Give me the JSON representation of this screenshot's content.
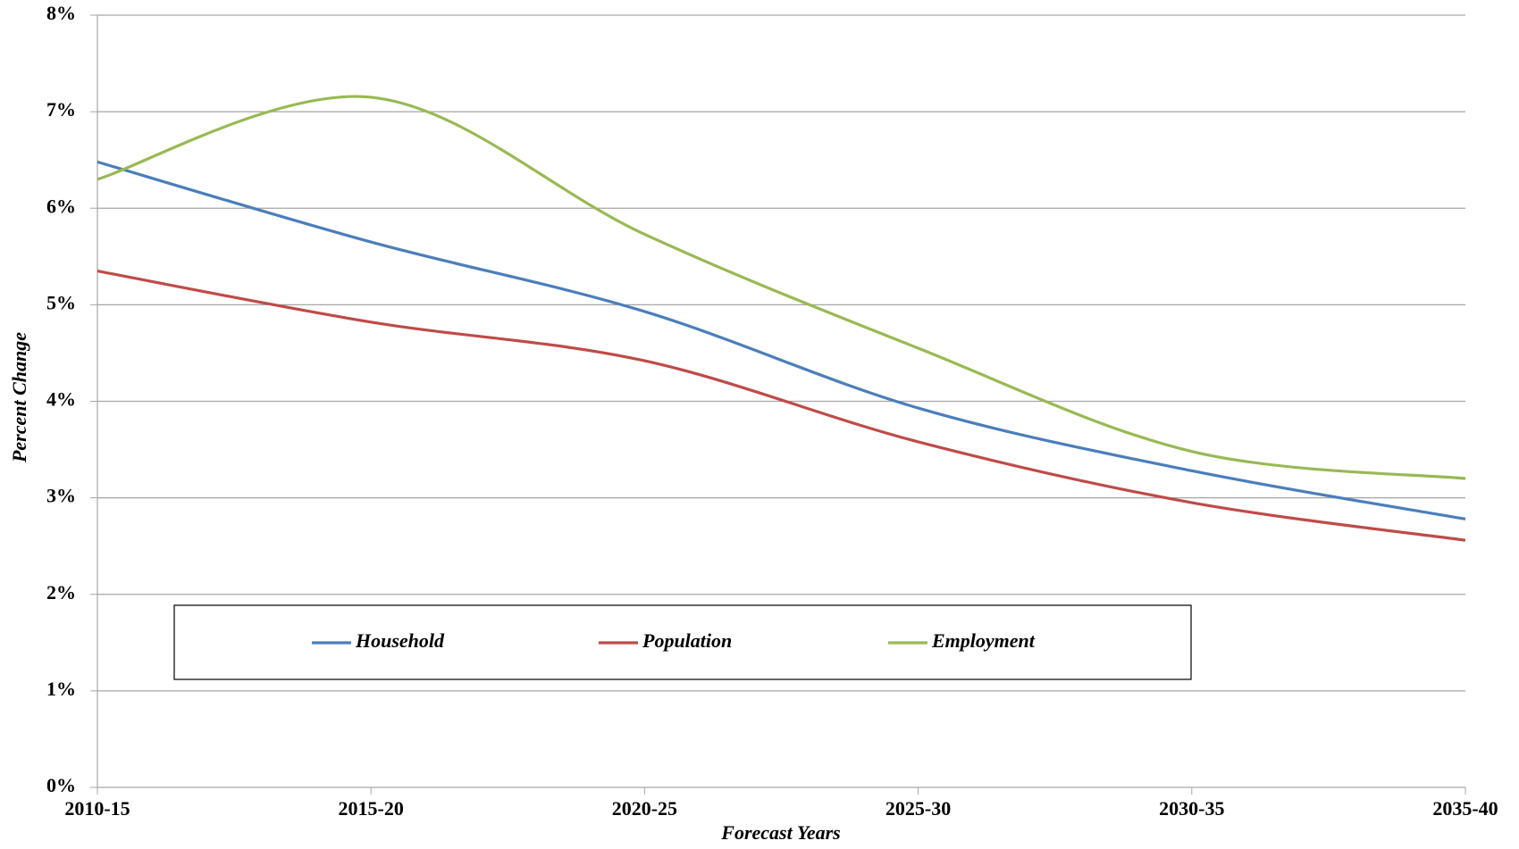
{
  "chart_data": {
    "type": "line",
    "x_label": "Forecast Years",
    "y_label": "Percent Change",
    "categories": [
      "2010-15",
      "2015-20",
      "2020-25",
      "2025-30",
      "2030-35",
      "2035-40"
    ],
    "series": [
      {
        "name": "Household",
        "color": "#4a7ebb",
        "values": [
          6.48,
          5.65,
          4.93,
          3.93,
          3.28,
          2.78
        ]
      },
      {
        "name": "Population",
        "color": "#be4b48",
        "values": [
          5.35,
          4.82,
          4.42,
          3.58,
          2.95,
          2.56
        ]
      },
      {
        "name": "Employment",
        "color": "#98b954",
        "values": [
          6.3,
          7.15,
          5.73,
          4.55,
          3.48,
          3.2
        ]
      }
    ],
    "ylim": [
      0,
      8
    ],
    "yticks": [
      {
        "value": 0,
        "label": "0%"
      },
      {
        "value": 1,
        "label": "1%"
      },
      {
        "value": 2,
        "label": "2%"
      },
      {
        "value": 3,
        "label": "3%"
      },
      {
        "value": 4,
        "label": "4%"
      },
      {
        "value": 5,
        "label": "5%"
      },
      {
        "value": 6,
        "label": "6%"
      },
      {
        "value": 7,
        "label": "7%"
      },
      {
        "value": 8,
        "label": "8%"
      }
    ],
    "grid": true,
    "smooth": true
  }
}
